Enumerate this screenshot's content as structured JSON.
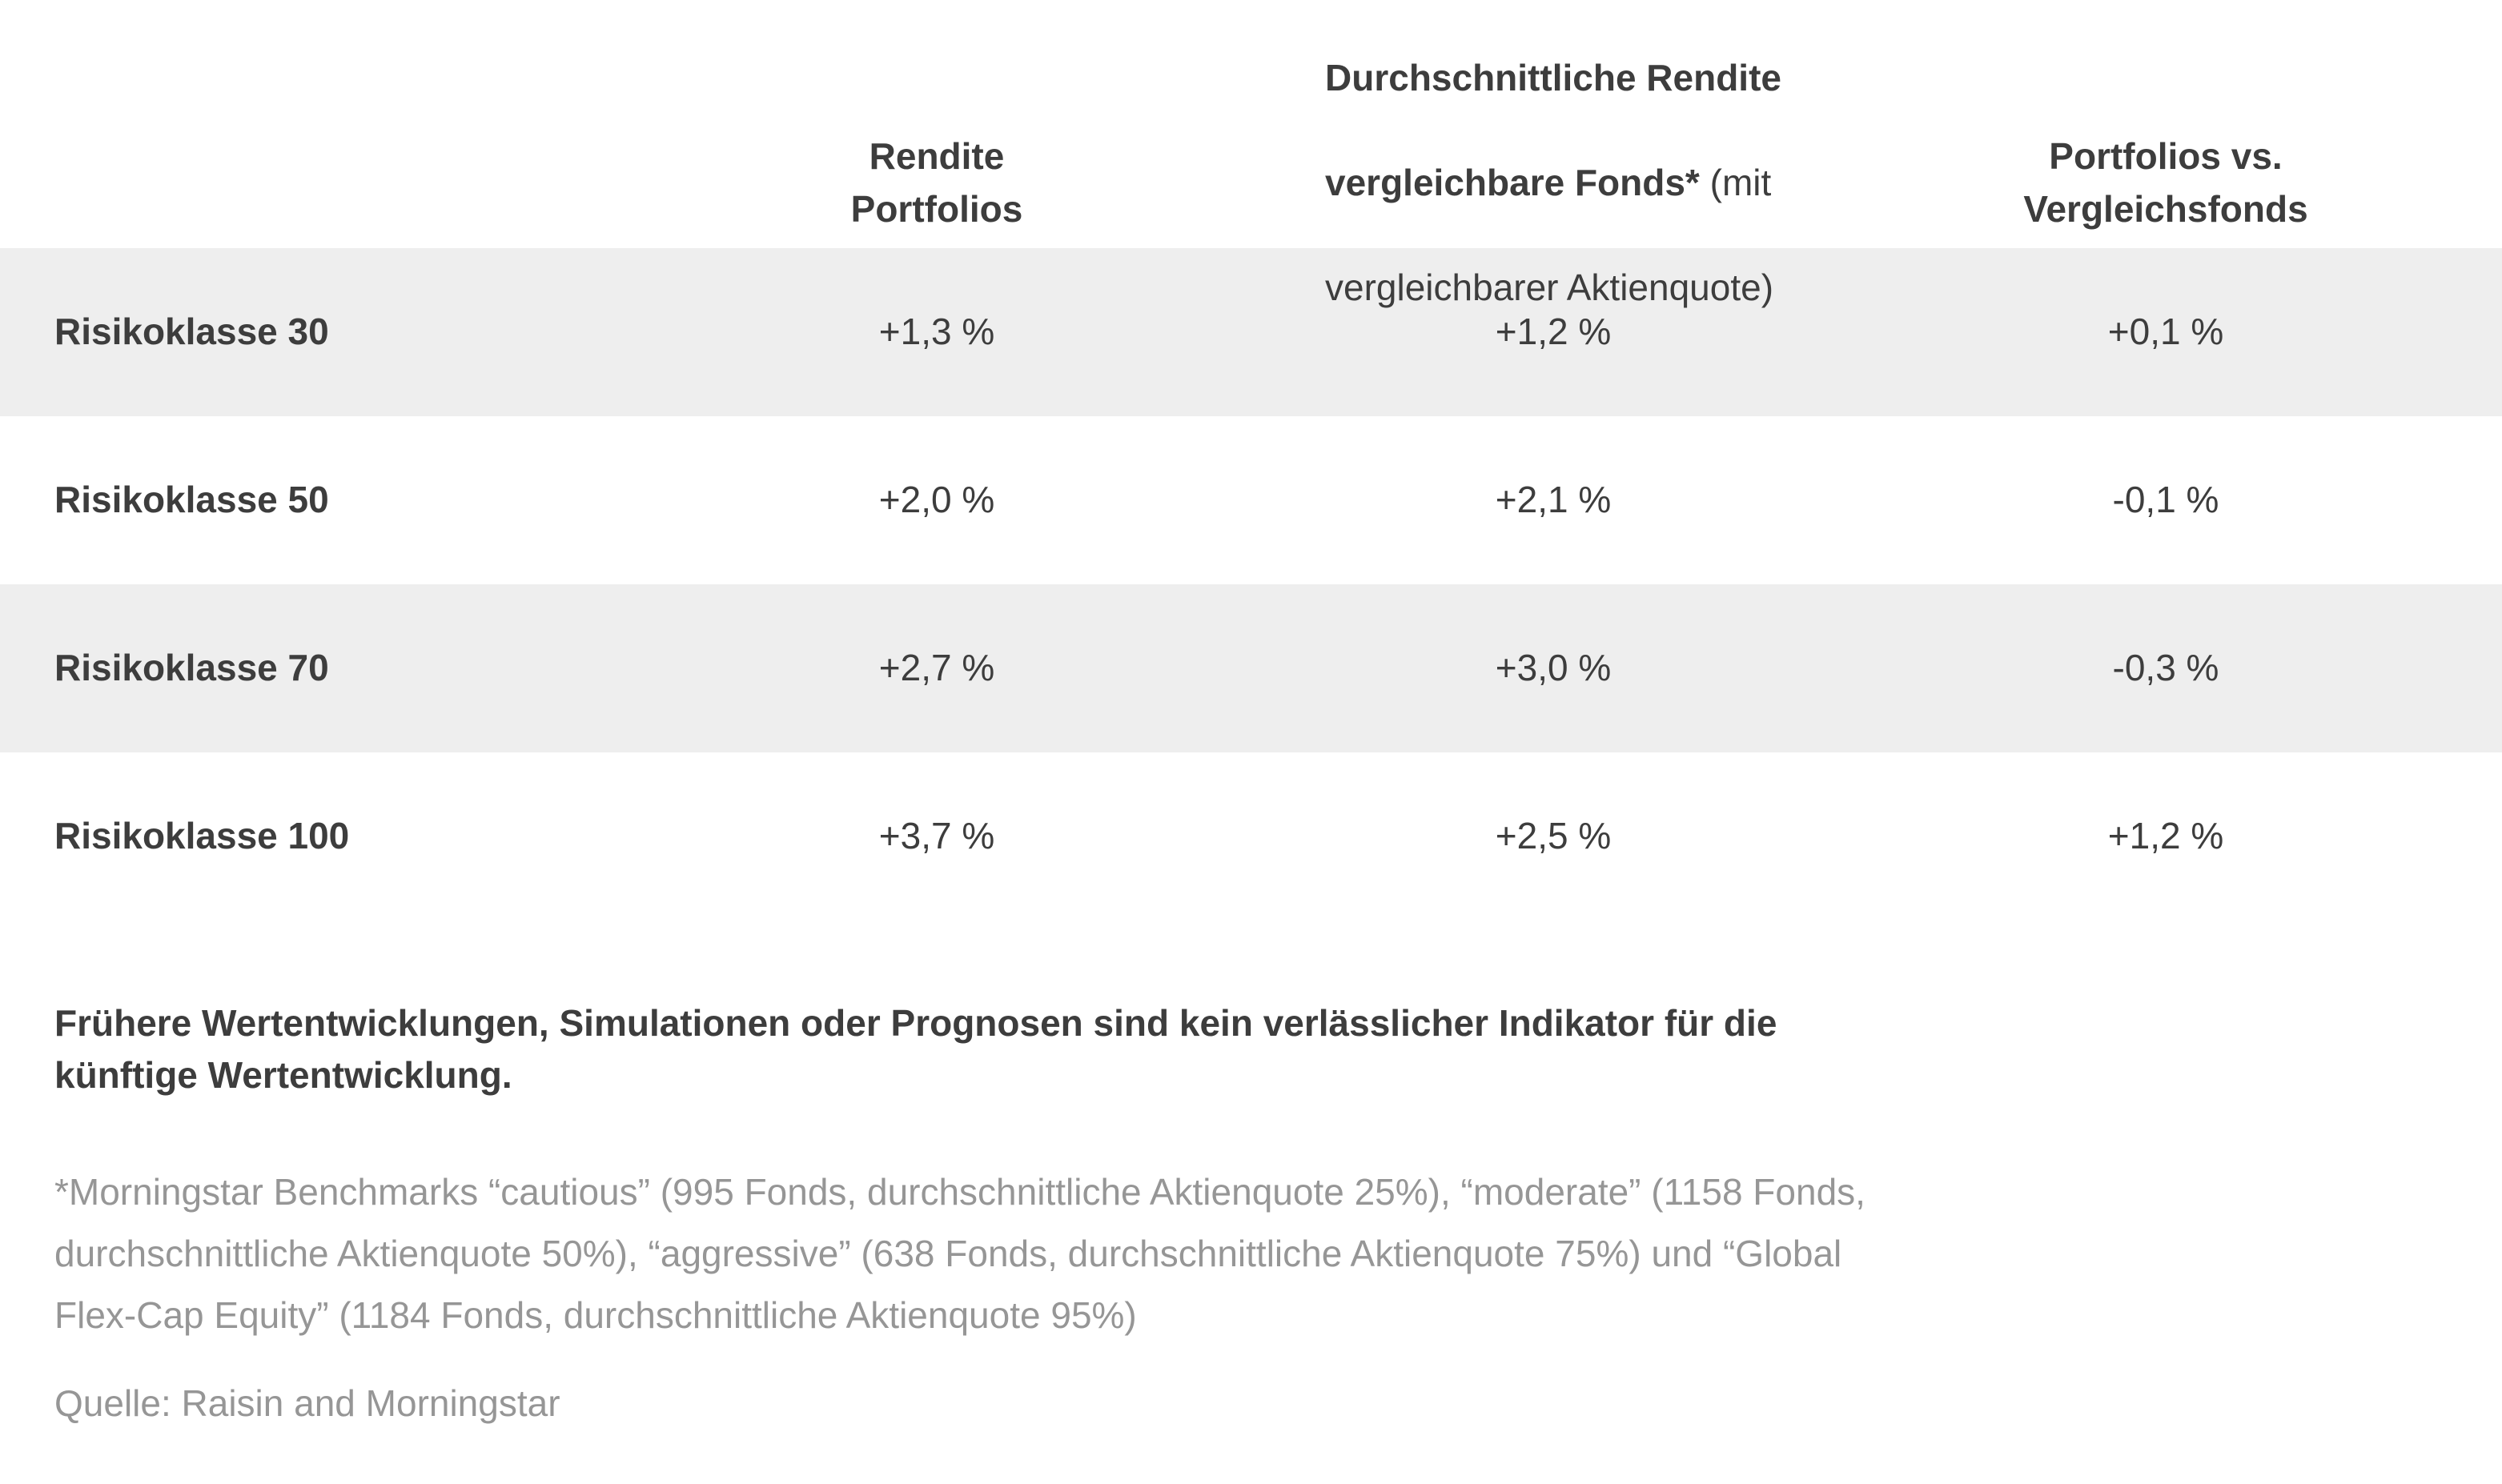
{
  "chart_data": {
    "type": "table",
    "title": "",
    "columns": [
      "",
      "Rendite Portfolios",
      "Durchschnittliche Rendite vergleichbare Fonds* (mit vergleichbarer Aktienquote)",
      "Portfolios vs. Vergleichsfonds"
    ],
    "rows": [
      [
        "Risikoklasse 30",
        "+1,3 %",
        "+1,2 %",
        "+0,1 %"
      ],
      [
        "Risikoklasse 50",
        "+2,0 %",
        "+2,1 %",
        "-0,1 %"
      ],
      [
        "Risikoklasse 70",
        "+2,7 %",
        "+3,0 %",
        "-0,3 %"
      ],
      [
        "Risikoklasse 100",
        "+3,7 %",
        "+2,5 %",
        "+1,2 %"
      ]
    ],
    "values_percent": {
      "Risikoklasse 30": [
        1.3,
        1.2,
        0.1
      ],
      "Risikoklasse 50": [
        2.0,
        2.1,
        -0.1
      ],
      "Risikoklasse 70": [
        2.7,
        3.0,
        -0.3
      ],
      "Risikoklasse 100": [
        3.7,
        2.5,
        1.2
      ]
    },
    "layout_hints": {
      "striped_rows": "rows 1 and 3 have light gray background",
      "stripe_color": "#eeeeee"
    }
  },
  "table": {
    "headers": {
      "portfolio_returns": "Rendite\nPortfolios",
      "benchmark_line1_bold": "Durchschnittliche Rendite",
      "benchmark_line2_bold": "vergleichbare Fonds*",
      "benchmark_line2_regular": " (mit",
      "benchmark_line3_regular": "vergleichbarer Aktienquote)",
      "vs_benchmark": "Portfolios vs.\nVergleichsfonds"
    },
    "rows": [
      {
        "label": "Risikoklasse 30",
        "portfolio_return": "+1,3 %",
        "benchmark_return": "+1,2 %",
        "difference": "+0,1 %"
      },
      {
        "label": "Risikoklasse 50",
        "portfolio_return": "+2,0 %",
        "benchmark_return": "+2,1 %",
        "difference": "-0,1 %"
      },
      {
        "label": "Risikoklasse 70",
        "portfolio_return": "+2,7 %",
        "benchmark_return": "+3,0 %",
        "difference": "-0,3 %"
      },
      {
        "label": "Risikoklasse 100",
        "portfolio_return": "+3,7 %",
        "benchmark_return": "+2,5 %",
        "difference": "+1,2 %"
      }
    ]
  },
  "notes": {
    "disclaimer": "Frühere Wertentwicklungen, Simulationen oder Prognosen sind kein verlässlicher Indikator für die\nkünftige Wertentwicklung.",
    "footnote": "*Morningstar Benchmarks “cautious” (995 Fonds, durchschnittliche Aktienquote 25%), “moderate” (1158 Fonds,\ndurchschnittliche Aktienquote 50%), “aggressive” (638 Fonds, durchschnittliche Aktienquote 75%) und “Global\nFlex-Cap Equity” (1184 Fonds, durchschnittliche Aktienquote 95%)",
    "source": "Quelle: Raisin and Morningstar"
  },
  "colors": {
    "stripe": "#eeeeee",
    "text_dark": "#3d3d3d",
    "text_muted": "#969696"
  }
}
